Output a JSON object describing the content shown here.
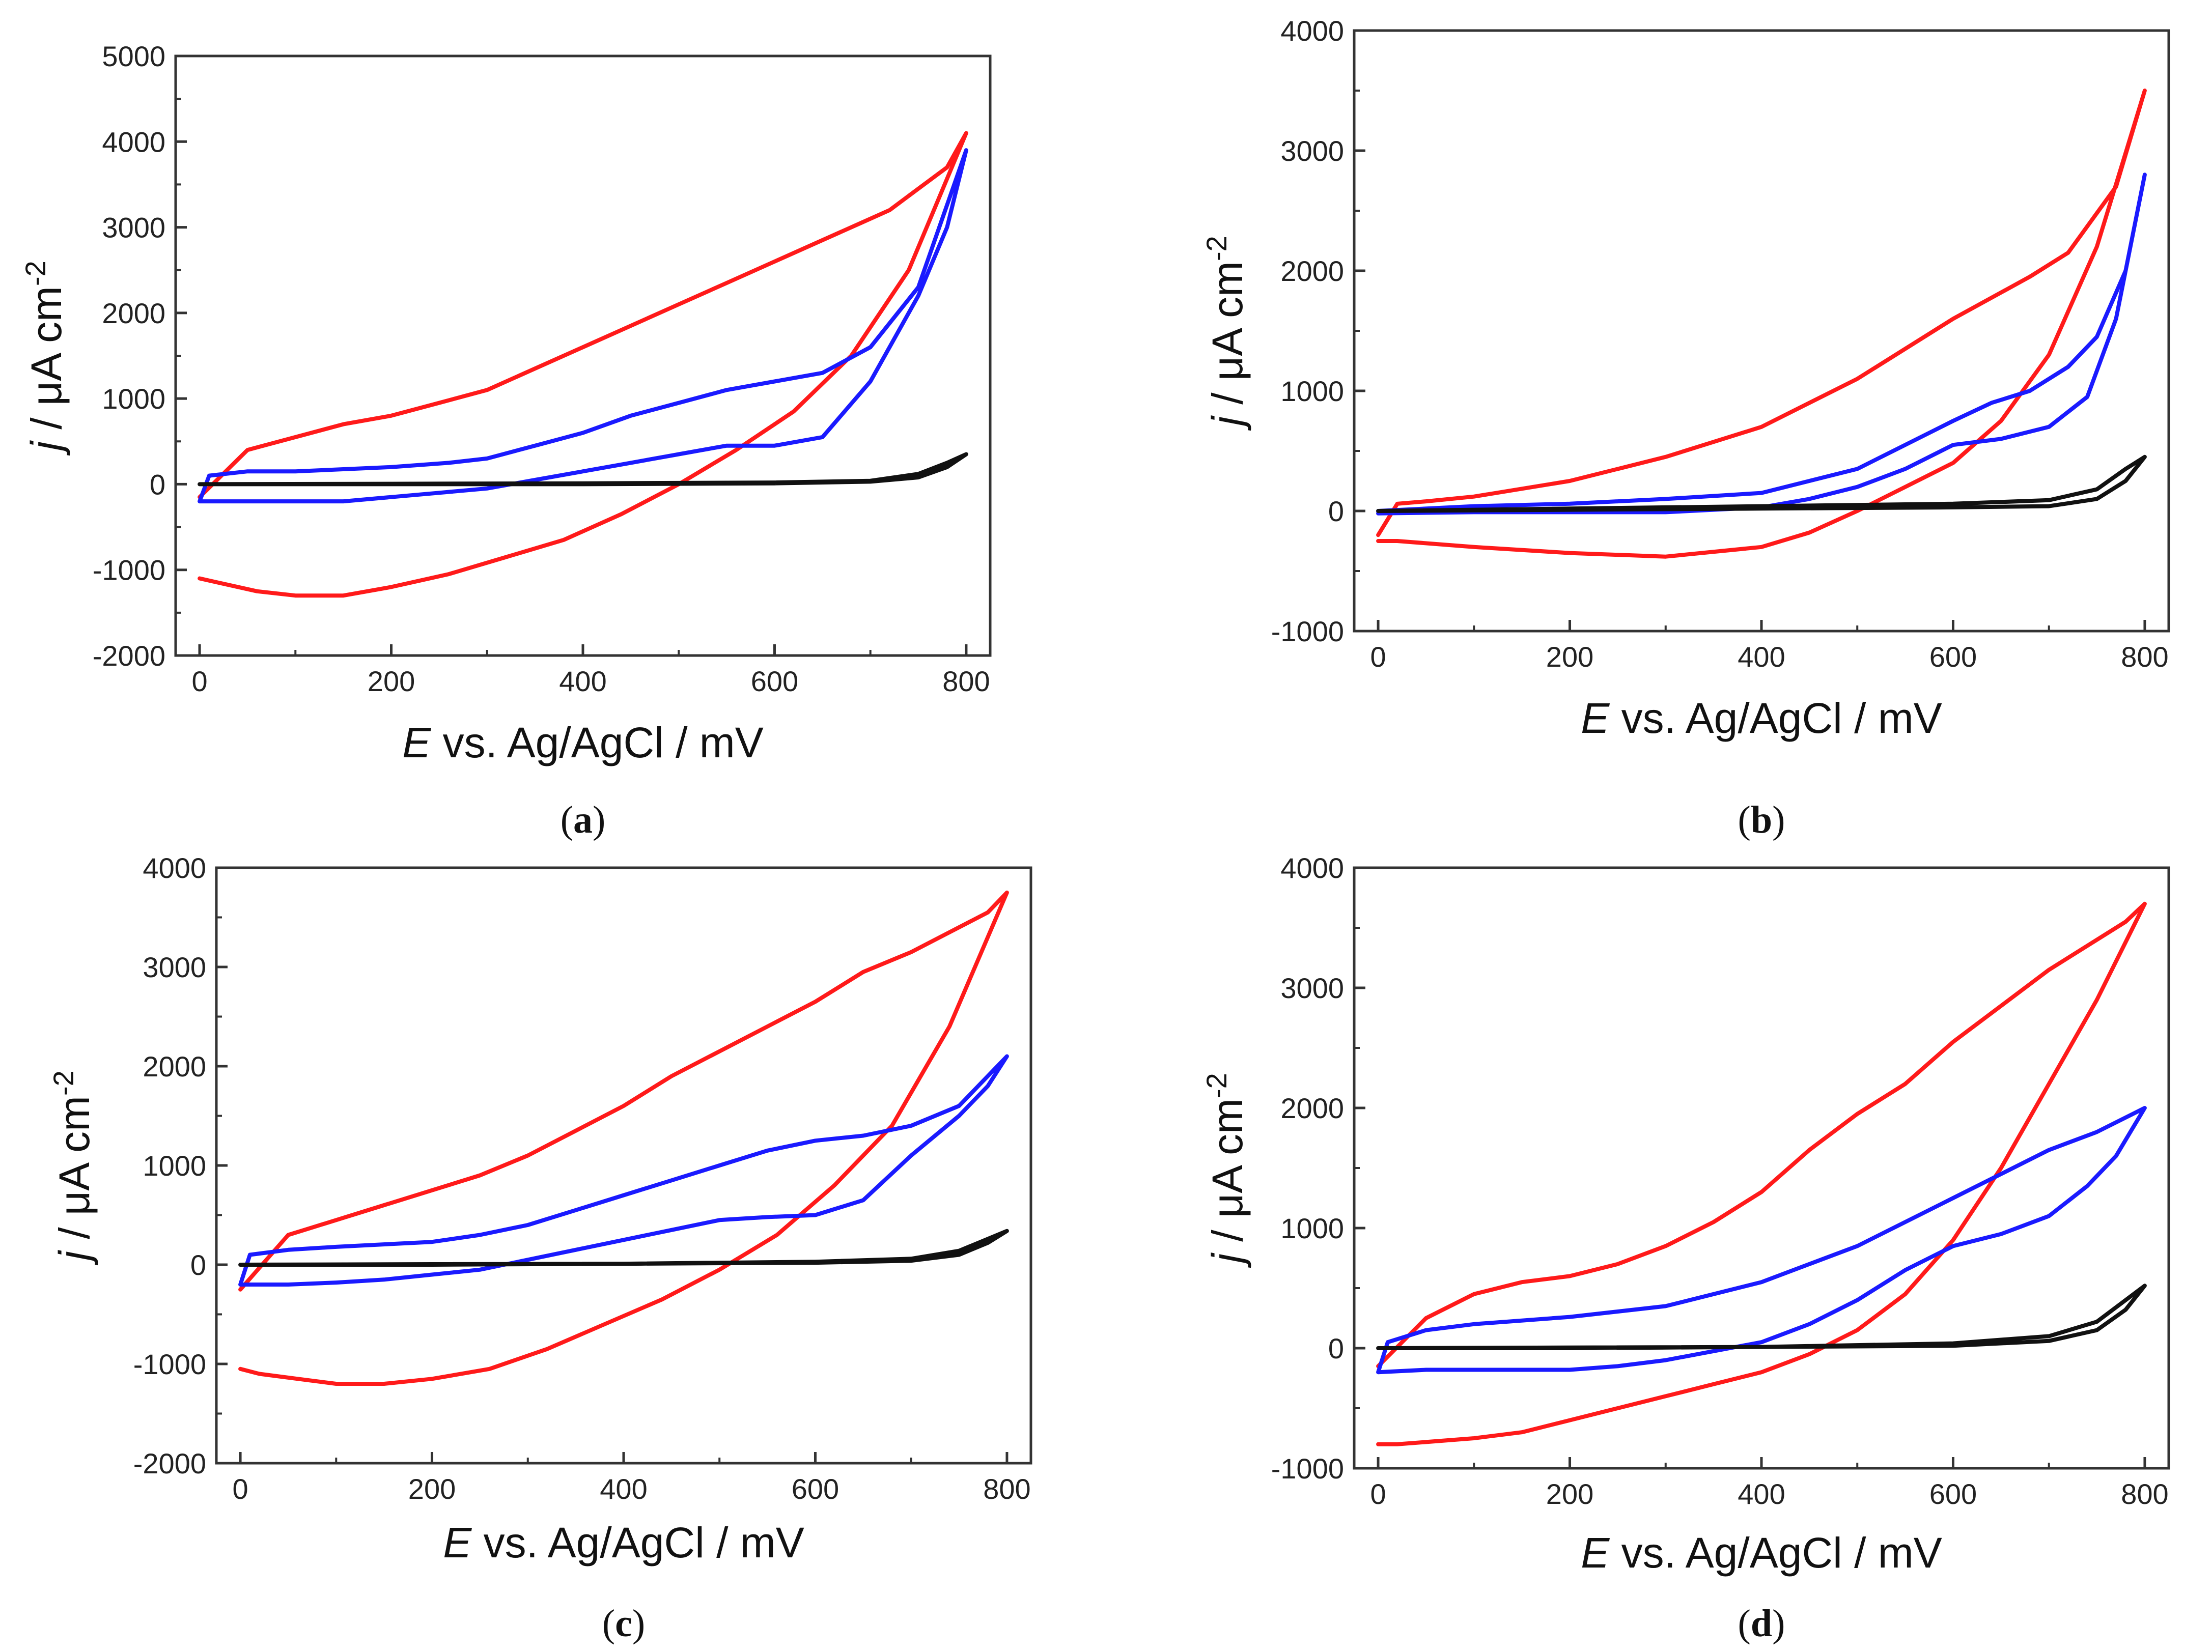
{
  "figure": {
    "colors": {
      "red": "#ff1a1a",
      "blue": "#1a1aff",
      "black": "#111111"
    }
  },
  "chart_data": [
    {
      "panel": "a",
      "caption_open": "(",
      "caption_letter": "a",
      "caption_close": ")",
      "type": "line",
      "xlabel_italic": "E",
      "xlabel_rest": " vs. Ag/AgCl / mV",
      "ylabel_italic": "j",
      "ylabel_rest": " / μA cm",
      "ylabel_sup": "-2",
      "xlim": [
        -25,
        825
      ],
      "ylim": [
        -2000,
        5000
      ],
      "xticks": [
        0,
        200,
        400,
        600,
        800
      ],
      "xtick_labels": [
        "0",
        "200",
        "400",
        "600",
        "800"
      ],
      "yticks": [
        -2000,
        -1000,
        0,
        1000,
        2000,
        3000,
        4000,
        5000
      ],
      "ytick_labels": [
        "-2000",
        "-1000",
        "0",
        "1000",
        "2000",
        "3000",
        "4000",
        "5000"
      ],
      "series": [
        {
          "name": "red",
          "color": "red",
          "x": [
            0,
            20,
            60,
            100,
            150,
            200,
            260,
            320,
            380,
            440,
            500,
            560,
            620,
            680,
            740,
            800,
            780,
            750,
            720,
            690,
            650,
            600,
            550,
            500,
            450,
            400,
            350,
            300,
            250,
            200,
            150,
            100,
            50,
            0
          ],
          "y": [
            -1100,
            -1150,
            -1250,
            -1300,
            -1300,
            -1200,
            -1050,
            -850,
            -650,
            -350,
            0,
            400,
            850,
            1500,
            2500,
            4100,
            3700,
            3450,
            3200,
            3050,
            2850,
            2600,
            2350,
            2100,
            1850,
            1600,
            1350,
            1100,
            950,
            800,
            700,
            550,
            400,
            -150
          ]
        },
        {
          "name": "blue",
          "color": "blue",
          "x": [
            0,
            10,
            50,
            100,
            200,
            260,
            300,
            350,
            400,
            450,
            500,
            550,
            600,
            650,
            700,
            750,
            800,
            780,
            750,
            700,
            650,
            600,
            550,
            500,
            450,
            400,
            350,
            300,
            250,
            200,
            150,
            100,
            50,
            0
          ],
          "y": [
            -200,
            100,
            150,
            150,
            200,
            250,
            300,
            450,
            600,
            800,
            950,
            1100,
            1200,
            1300,
            1600,
            2300,
            3900,
            3000,
            2200,
            1200,
            550,
            450,
            450,
            350,
            250,
            150,
            50,
            -50,
            -100,
            -150,
            -200,
            -200,
            -200,
            -200
          ]
        },
        {
          "name": "black",
          "color": "black",
          "x": [
            0,
            200,
            400,
            600,
            700,
            750,
            780,
            800,
            780,
            750,
            700,
            600,
            400,
            200,
            0
          ],
          "y": [
            0,
            0,
            0,
            10,
            30,
            80,
            200,
            350,
            250,
            120,
            40,
            20,
            10,
            5,
            0
          ]
        }
      ]
    },
    {
      "panel": "b",
      "caption_open": "(",
      "caption_letter": "b",
      "caption_close": ")",
      "type": "line",
      "xlabel_italic": "E",
      "xlabel_rest": " vs. Ag/AgCl / mV",
      "ylabel_italic": "j",
      "ylabel_rest": " / μA cm",
      "ylabel_sup": "-2",
      "xlim": [
        -25,
        825
      ],
      "ylim": [
        -1000,
        4000
      ],
      "xticks": [
        0,
        200,
        400,
        600,
        800
      ],
      "xtick_labels": [
        "0",
        "200",
        "400",
        "600",
        "800"
      ],
      "yticks": [
        -1000,
        0,
        1000,
        2000,
        3000,
        4000
      ],
      "ytick_labels": [
        "-1000",
        "0",
        "1000",
        "2000",
        "3000",
        "4000"
      ],
      "series": [
        {
          "name": "red",
          "color": "red",
          "x": [
            0,
            20,
            100,
            200,
            300,
            400,
            450,
            500,
            550,
            600,
            650,
            700,
            750,
            800,
            770,
            720,
            680,
            600,
            500,
            400,
            300,
            200,
            100,
            50,
            20,
            0
          ],
          "y": [
            -250,
            -250,
            -300,
            -350,
            -380,
            -300,
            -180,
            0,
            200,
            400,
            750,
            1300,
            2200,
            3500,
            2700,
            2150,
            1950,
            1600,
            1100,
            700,
            450,
            250,
            120,
            80,
            60,
            -200
          ]
        },
        {
          "name": "blue",
          "color": "blue",
          "x": [
            0,
            100,
            200,
            300,
            400,
            450,
            500,
            550,
            600,
            650,
            700,
            740,
            770,
            800,
            780,
            750,
            720,
            680,
            640,
            600,
            550,
            500,
            450,
            400,
            300,
            200,
            100,
            0
          ],
          "y": [
            -20,
            -10,
            -10,
            -10,
            30,
            100,
            200,
            350,
            550,
            600,
            700,
            950,
            1600,
            2800,
            2000,
            1450,
            1200,
            1000,
            900,
            750,
            550,
            350,
            250,
            150,
            100,
            60,
            40,
            0
          ]
        },
        {
          "name": "black",
          "color": "black",
          "x": [
            0,
            200,
            400,
            600,
            700,
            750,
            780,
            800,
            780,
            750,
            700,
            600,
            400,
            200,
            0
          ],
          "y": [
            0,
            10,
            20,
            30,
            40,
            100,
            250,
            450,
            350,
            180,
            90,
            60,
            40,
            20,
            0
          ]
        }
      ]
    },
    {
      "panel": "c",
      "caption_open": "(",
      "caption_letter": "c",
      "caption_close": ")",
      "type": "line",
      "xlabel_italic": "E",
      "xlabel_rest": " vs. Ag/AgCl / mV",
      "ylabel_italic": "j",
      "ylabel_rest": " / μA cm",
      "ylabel_sup": "-2",
      "xlim": [
        -25,
        825
      ],
      "ylim": [
        -2000,
        4000
      ],
      "xticks": [
        0,
        200,
        400,
        600,
        800
      ],
      "xtick_labels": [
        "0",
        "200",
        "400",
        "600",
        "800"
      ],
      "yticks": [
        -2000,
        -1000,
        0,
        1000,
        2000,
        3000,
        4000
      ],
      "ytick_labels": [
        "-2000",
        "-1000",
        "0",
        "1000",
        "2000",
        "3000",
        "4000"
      ],
      "series": [
        {
          "name": "red",
          "color": "red",
          "x": [
            0,
            20,
            60,
            100,
            150,
            200,
            260,
            320,
            380,
            440,
            500,
            560,
            620,
            680,
            740,
            800,
            780,
            740,
            700,
            650,
            600,
            550,
            500,
            450,
            400,
            350,
            300,
            250,
            200,
            150,
            100,
            50,
            0
          ],
          "y": [
            -1050,
            -1100,
            -1150,
            -1200,
            -1200,
            -1150,
            -1050,
            -850,
            -600,
            -350,
            -50,
            300,
            800,
            1400,
            2400,
            3750,
            3550,
            3350,
            3150,
            2950,
            2650,
            2400,
            2150,
            1900,
            1600,
            1350,
            1100,
            900,
            750,
            600,
            450,
            300,
            -250
          ]
        },
        {
          "name": "blue",
          "color": "blue",
          "x": [
            0,
            10,
            50,
            100,
            200,
            250,
            300,
            350,
            400,
            450,
            500,
            550,
            600,
            650,
            700,
            750,
            800,
            780,
            750,
            700,
            650,
            600,
            550,
            500,
            450,
            400,
            350,
            300,
            250,
            200,
            150,
            100,
            50,
            0
          ],
          "y": [
            -200,
            100,
            150,
            180,
            230,
            300,
            400,
            550,
            700,
            850,
            1000,
            1150,
            1250,
            1300,
            1400,
            1600,
            2100,
            1800,
            1500,
            1100,
            650,
            500,
            480,
            450,
            350,
            250,
            150,
            50,
            -50,
            -100,
            -150,
            -180,
            -200,
            -200
          ]
        },
        {
          "name": "black",
          "color": "black",
          "x": [
            0,
            200,
            400,
            600,
            700,
            750,
            780,
            800,
            780,
            750,
            700,
            600,
            400,
            200,
            0
          ],
          "y": [
            0,
            0,
            10,
            20,
            40,
            100,
            220,
            340,
            260,
            140,
            60,
            30,
            10,
            5,
            0
          ]
        }
      ]
    },
    {
      "panel": "d",
      "caption_open": "(",
      "caption_letter": "d",
      "caption_close": ")",
      "type": "line",
      "xlabel_italic": "E",
      "xlabel_rest": " vs. Ag/AgCl / mV",
      "ylabel_italic": "j",
      "ylabel_rest": " / μA cm",
      "ylabel_sup": "-2",
      "xlim": [
        -25,
        825
      ],
      "ylim": [
        -1000,
        4000
      ],
      "xticks": [
        0,
        200,
        400,
        600,
        800
      ],
      "xtick_labels": [
        "0",
        "200",
        "400",
        "600",
        "800"
      ],
      "yticks": [
        -1000,
        0,
        1000,
        2000,
        3000,
        4000
      ],
      "ytick_labels": [
        "-1000",
        "0",
        "1000",
        "2000",
        "3000",
        "4000"
      ],
      "series": [
        {
          "name": "red",
          "color": "red",
          "x": [
            0,
            20,
            100,
            150,
            200,
            250,
            300,
            350,
            400,
            450,
            500,
            550,
            600,
            650,
            700,
            750,
            800,
            780,
            740,
            700,
            650,
            600,
            550,
            500,
            450,
            400,
            350,
            300,
            250,
            200,
            150,
            100,
            50,
            0
          ],
          "y": [
            -800,
            -800,
            -750,
            -700,
            -600,
            -500,
            -400,
            -300,
            -200,
            -50,
            150,
            450,
            900,
            1500,
            2200,
            2900,
            3700,
            3550,
            3350,
            3150,
            2850,
            2550,
            2200,
            1950,
            1650,
            1300,
            1050,
            850,
            700,
            600,
            550,
            450,
            250,
            -150
          ]
        },
        {
          "name": "blue",
          "color": "blue",
          "x": [
            0,
            10,
            50,
            100,
            200,
            300,
            400,
            450,
            500,
            550,
            600,
            650,
            700,
            750,
            800,
            770,
            740,
            700,
            650,
            600,
            550,
            500,
            450,
            400,
            300,
            250,
            200,
            150,
            100,
            50,
            0
          ],
          "y": [
            -200,
            50,
            150,
            200,
            260,
            350,
            550,
            700,
            850,
            1050,
            1250,
            1450,
            1650,
            1800,
            2000,
            1600,
            1350,
            1100,
            950,
            850,
            650,
            400,
            200,
            50,
            -100,
            -150,
            -180,
            -180,
            -180,
            -180,
            -200
          ]
        },
        {
          "name": "black",
          "color": "black",
          "x": [
            0,
            200,
            400,
            600,
            700,
            750,
            780,
            800,
            780,
            750,
            700,
            600,
            400,
            200,
            0
          ],
          "y": [
            0,
            0,
            10,
            20,
            60,
            150,
            320,
            520,
            400,
            220,
            100,
            40,
            10,
            5,
            0
          ]
        }
      ]
    }
  ]
}
